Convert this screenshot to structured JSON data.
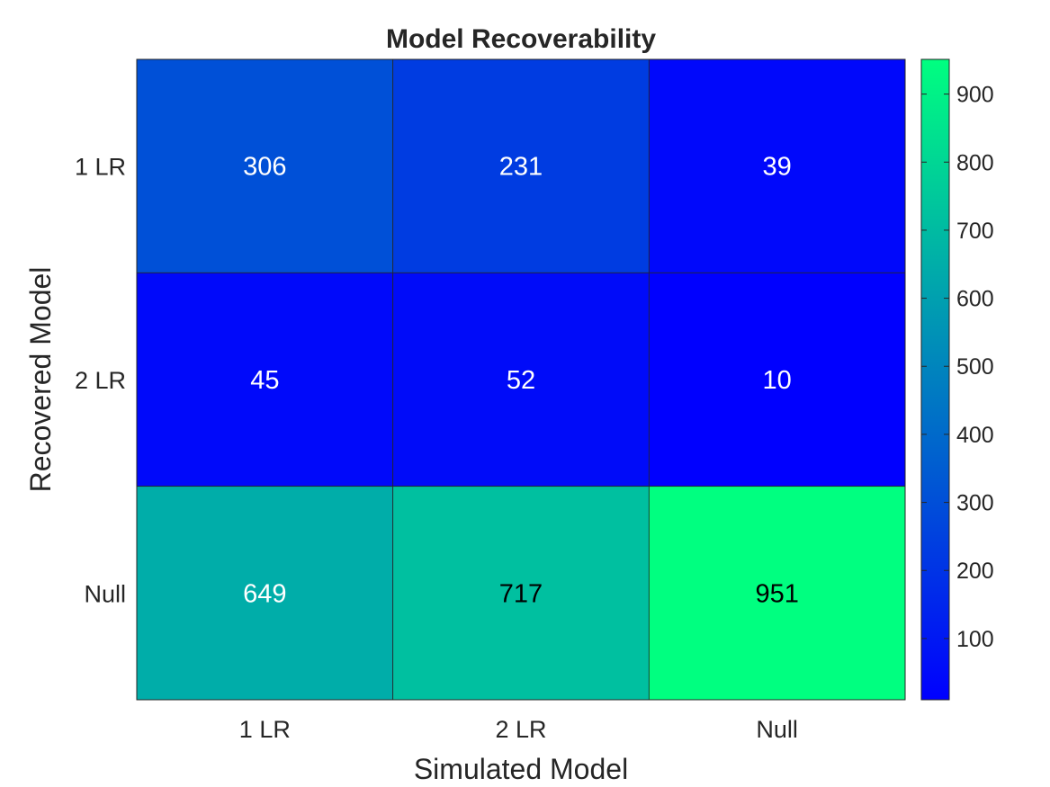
{
  "chart_data": {
    "type": "heatmap",
    "title": "Model Recoverability",
    "xlabel": "Simulated Model",
    "ylabel": "Recovered Model",
    "x_categories": [
      "1 LR",
      "2 LR",
      "Null"
    ],
    "y_categories": [
      "1 LR",
      "2 LR",
      "Null"
    ],
    "values": [
      [
        306,
        231,
        39
      ],
      [
        45,
        52,
        10
      ],
      [
        649,
        717,
        951
      ]
    ],
    "colormap": "winter",
    "colorbar": {
      "min": 10,
      "max": 951,
      "ticks": [
        100,
        200,
        300,
        400,
        500,
        600,
        700,
        800,
        900
      ],
      "low_color": "#0000ff",
      "high_color": "#00ff80"
    },
    "label_colors": {
      "light": "#ffffff",
      "dark": "#000000"
    }
  }
}
